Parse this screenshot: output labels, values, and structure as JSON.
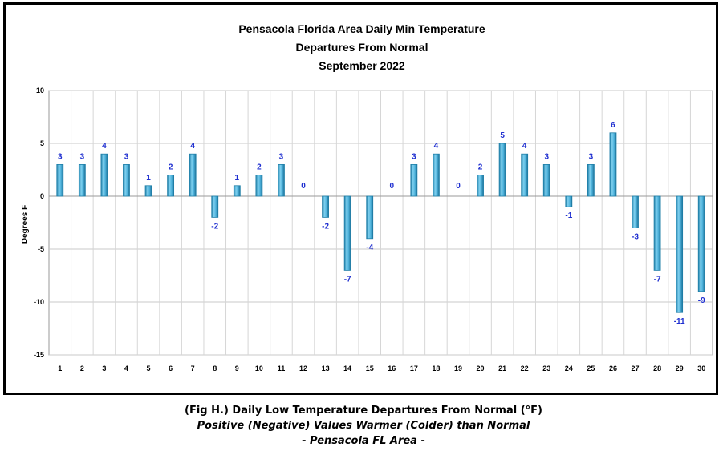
{
  "chart_data": {
    "type": "bar",
    "title": [
      "Pensacola Florida Area Daily Min Temperature",
      "Departures From Normal",
      "September 2022"
    ],
    "ylabel": "Degrees F",
    "xlabel": "",
    "categories": [
      "1",
      "2",
      "3",
      "4",
      "5",
      "6",
      "7",
      "8",
      "9",
      "10",
      "11",
      "12",
      "13",
      "14",
      "15",
      "16",
      "17",
      "18",
      "19",
      "20",
      "21",
      "22",
      "23",
      "24",
      "25",
      "26",
      "27",
      "28",
      "29",
      "30"
    ],
    "values": [
      3,
      3,
      4,
      3,
      1,
      2,
      4,
      -2,
      1,
      2,
      3,
      0,
      -2,
      -7,
      -4,
      0,
      3,
      4,
      0,
      2,
      5,
      4,
      3,
      -1,
      3,
      6,
      -3,
      -7,
      -11,
      -9
    ],
    "ylim": [
      -15,
      10
    ],
    "yticks": [
      "10",
      "5",
      "0",
      "-5",
      "-10",
      "-15"
    ],
    "grid": true,
    "legend": "none",
    "colors": {
      "bar": "#4fb3dc",
      "bar_dark": "#1f7fa8",
      "label": "#1f2fd0"
    }
  },
  "caption": {
    "line1": "(Fig H.) Daily Low Temperature Departures From Normal (°F)",
    "line2": "Positive (Negative) Values Warmer (Colder) than Normal",
    "line3": "- Pensacola FL Area -"
  }
}
